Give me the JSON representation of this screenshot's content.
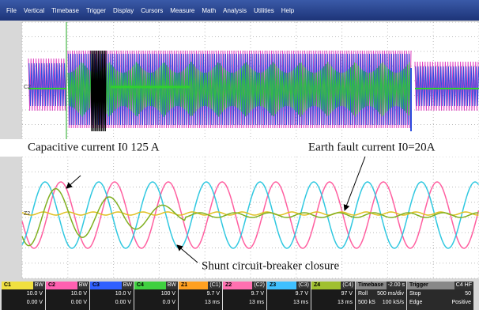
{
  "menu": [
    "File",
    "Vertical",
    "Timebase",
    "Trigger",
    "Display",
    "Cursors",
    "Measure",
    "Math",
    "Analysis",
    "Utilities",
    "Help"
  ],
  "upper_trace_label": "C2",
  "lower_trace_label": "Z2",
  "annotations": {
    "capacitive": "Capacitive current I0 125 A",
    "earth_fault": "Earth fault current I0=20A",
    "shunt": "Shunt circuit-breaker closure"
  },
  "channels": [
    {
      "name": "C1",
      "tag": "BW",
      "lines": [
        "10.0 V",
        "0.00 V"
      ]
    },
    {
      "name": "C2",
      "tag": "BW",
      "lines": [
        "10.0 V",
        "0.00 V"
      ]
    },
    {
      "name": "C3",
      "tag": "BW",
      "lines": [
        "10.0 V",
        "0.00 V"
      ]
    },
    {
      "name": "C4",
      "tag": "BW",
      "lines": [
        "100 V",
        "0.0 V"
      ]
    },
    {
      "name": "Z1",
      "tag": "(C1)",
      "lines": [
        "9.7 V",
        "13 ms"
      ]
    },
    {
      "name": "Z2",
      "tag": "(C2)",
      "lines": [
        "9.7 V",
        "13 ms"
      ]
    },
    {
      "name": "Z3",
      "tag": "(C3)",
      "lines": [
        "9.7 V",
        "13 ms"
      ]
    },
    {
      "name": "Z4",
      "tag": "(C4)",
      "lines": [
        "97 V",
        "13 ms"
      ]
    }
  ],
  "timebase": {
    "name": "Timebase",
    "offset": "-2.00 s",
    "lines": [
      [
        "Roll",
        "500 ms/div"
      ],
      [
        "500 kS",
        "100 kS/s"
      ]
    ]
  },
  "trigger": {
    "name": "Trigger",
    "tag": "C4 HF",
    "lines": [
      [
        "Stop",
        "50"
      ],
      [
        "Edge",
        "Positive"
      ]
    ]
  }
}
